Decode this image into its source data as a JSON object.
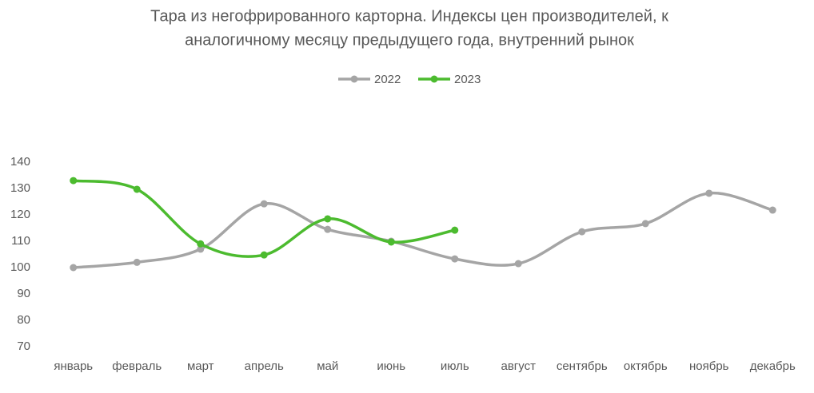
{
  "chart_data": {
    "type": "line",
    "title": [
      "Тара из негофрированного карторна. Индексы цен производителей, к",
      "аналогичному месяцу предыдущего года, внутренний рынок"
    ],
    "categories": [
      "январь",
      "февраль",
      "март",
      "апрель",
      "май",
      "июнь",
      "июль",
      "август",
      "сентябрь",
      "октябрь",
      "ноябрь",
      "декабрь"
    ],
    "series": [
      {
        "name": "2022",
        "color": "#a5a5a5",
        "values": [
          100,
          102,
          107,
          124.2,
          114.5,
          110,
          103.3,
          101.5,
          113.6,
          116.7,
          128.2,
          121.8
        ]
      },
      {
        "name": "2023",
        "color": "#4cbb2f",
        "values": [
          133,
          129.7,
          109,
          104.8,
          118.5,
          109.7,
          114.2,
          null,
          null,
          null,
          null,
          null
        ]
      }
    ],
    "ylim": [
      70,
      140
    ],
    "yticks": [
      70,
      80,
      90,
      100,
      110,
      120,
      130,
      140
    ],
    "grid": false,
    "smooth": true,
    "legend": "top"
  }
}
